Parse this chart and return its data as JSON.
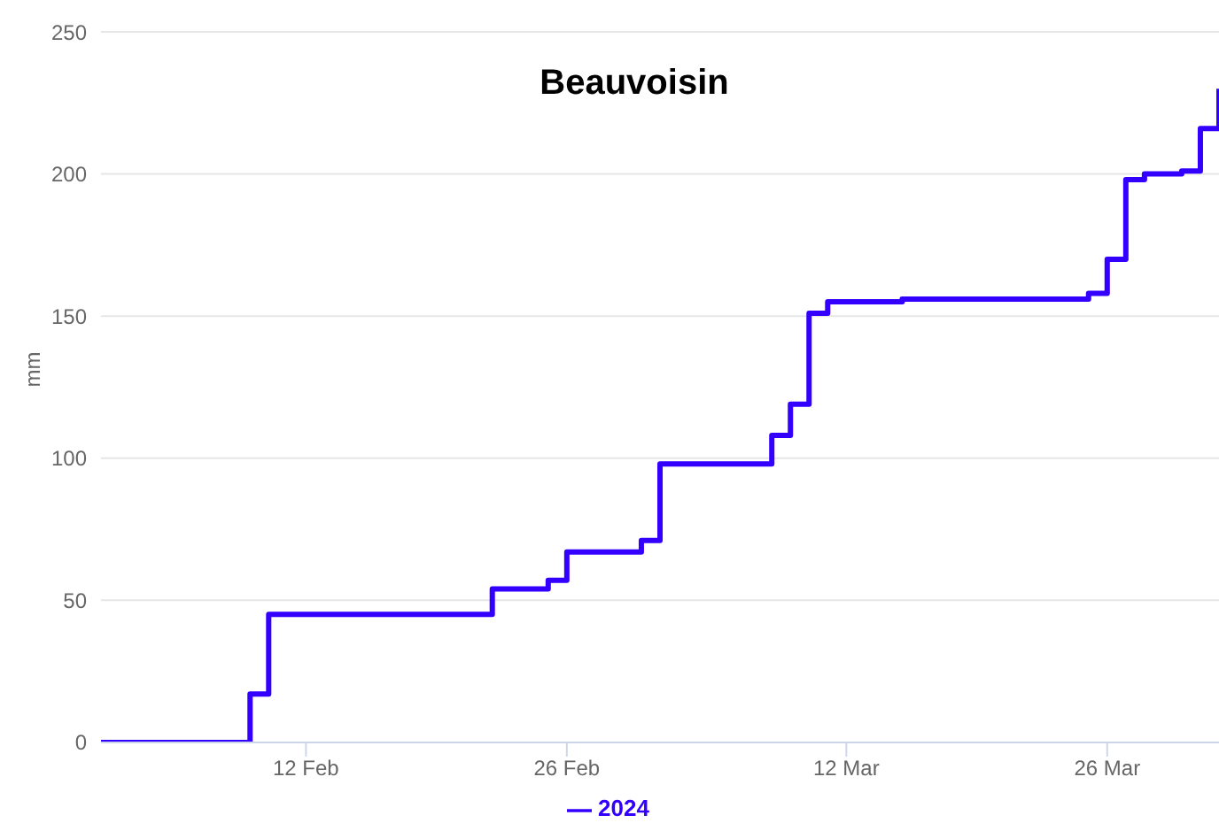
{
  "chart_data": {
    "type": "step",
    "title": "Beauvoisin",
    "ylabel": "mm",
    "x": [
      "2024-02-01",
      "2024-02-09",
      "2024-02-10",
      "2024-02-22",
      "2024-02-25",
      "2024-02-26",
      "2024-03-01",
      "2024-03-02",
      "2024-03-08",
      "2024-03-09",
      "2024-03-10",
      "2024-03-11",
      "2024-03-15",
      "2024-03-25",
      "2024-03-26",
      "2024-03-27",
      "2024-03-28",
      "2024-03-30",
      "2024-03-31",
      "2024-04-01"
    ],
    "series": [
      {
        "name": "2024",
        "color": "#3300ff",
        "values": [
          0,
          17,
          45,
          54,
          57,
          67,
          71,
          98,
          108,
          119,
          151,
          155,
          156,
          158,
          170,
          198,
          200,
          201,
          216,
          230
        ]
      }
    ],
    "xlim": [
      "2024-02-01",
      "2024-04-01"
    ],
    "xticks": [
      {
        "value": "2024-02-12",
        "label": "12 Feb"
      },
      {
        "value": "2024-02-26",
        "label": "26 Feb"
      },
      {
        "value": "2024-03-12",
        "label": "12 Mar"
      },
      {
        "value": "2024-03-26",
        "label": "26 Mar"
      }
    ],
    "ylim": [
      0,
      250
    ],
    "yticks": [
      0,
      50,
      100,
      150,
      200,
      250
    ],
    "grid": "y",
    "legend": "bottom",
    "marker": "none",
    "line_style": "solid"
  }
}
